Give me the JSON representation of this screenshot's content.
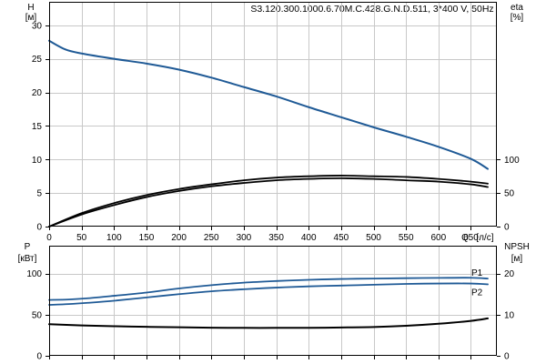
{
  "chart_data": [
    {
      "type": "line",
      "title": "S3.120.300.1000.6.70M.C.428.G.N.D.511, 3*400 V, 50Hz",
      "x_label": "Q",
      "x_unit": "[л/с]",
      "x_ticks": [
        0,
        50,
        100,
        150,
        200,
        250,
        300,
        350,
        400,
        450,
        500,
        550,
        600,
        650
      ],
      "xlim": [
        0,
        690
      ],
      "y_left": {
        "label": "H",
        "unit": "[м]",
        "ticks": [
          0,
          5,
          10,
          15,
          20,
          25,
          30
        ],
        "lim": [
          0,
          33.5
        ]
      },
      "y_right": {
        "label": "eta",
        "unit": "[%]",
        "ticks": [
          0,
          50,
          100
        ],
        "lim": [
          0,
          335
        ]
      },
      "grid": true,
      "colors": {
        "head": "#1f5a96",
        "eta": "#000000"
      },
      "series": [
        {
          "axis": "left",
          "role": "head",
          "x": [
            0,
            25,
            50,
            100,
            150,
            200,
            250,
            300,
            350,
            400,
            450,
            500,
            550,
            600,
            650,
            676
          ],
          "y": [
            27.7,
            26.4,
            25.8,
            25.0,
            24.3,
            23.4,
            22.2,
            20.8,
            19.4,
            17.8,
            16.3,
            14.8,
            13.4,
            11.9,
            10.1,
            8.6
          ]
        },
        {
          "axis": "right",
          "role": "eta",
          "x": [
            0,
            50,
            100,
            150,
            200,
            250,
            300,
            350,
            400,
            450,
            500,
            550,
            600,
            650,
            676
          ],
          "y": [
            0,
            20,
            35,
            47,
            56,
            63,
            69,
            73,
            75,
            76,
            75,
            74,
            71,
            67,
            64
          ]
        },
        {
          "axis": "right",
          "role": "eta",
          "x": [
            0,
            50,
            100,
            150,
            200,
            250,
            300,
            350,
            400,
            450,
            500,
            550,
            600,
            650,
            676
          ],
          "y": [
            0,
            18,
            32,
            44,
            53,
            60,
            65,
            69,
            71,
            72,
            71,
            69,
            67,
            63,
            59
          ]
        }
      ]
    },
    {
      "type": "line",
      "x_ticks": [
        0,
        50,
        100,
        150,
        200,
        250,
        300,
        350,
        400,
        450,
        500,
        550,
        600,
        650
      ],
      "xlim": [
        0,
        690
      ],
      "y_left": {
        "label": "P",
        "unit": "[кВт]",
        "ticks": [
          0,
          50,
          100
        ],
        "lim": [
          0,
          134
        ]
      },
      "y_right": {
        "label": "NPSH",
        "unit": "[м]",
        "ticks": [
          0,
          10,
          20
        ],
        "lim": [
          0,
          26.8
        ]
      },
      "grid": true,
      "colors": {
        "power": "#1f5a96",
        "npsh": "#000000"
      },
      "series": [
        {
          "axis": "left",
          "role": "power",
          "name": "P1",
          "x": [
            0,
            30,
            60,
            100,
            150,
            200,
            250,
            300,
            350,
            400,
            450,
            500,
            550,
            600,
            650,
            676
          ],
          "y": [
            68,
            68.5,
            70,
            73,
            77,
            82,
            86,
            89,
            91,
            92.5,
            93.5,
            94,
            94.5,
            94.8,
            95,
            94
          ]
        },
        {
          "axis": "left",
          "role": "power",
          "name": "P2",
          "x": [
            0,
            30,
            60,
            100,
            150,
            200,
            250,
            300,
            350,
            400,
            450,
            500,
            550,
            600,
            650,
            676
          ],
          "y": [
            62,
            63,
            64.5,
            67,
            71,
            75,
            78.5,
            81,
            83,
            84.5,
            85.5,
            86.5,
            87.5,
            88,
            88,
            87
          ]
        },
        {
          "axis": "right",
          "role": "npsh",
          "x": [
            0,
            50,
            100,
            150,
            200,
            250,
            300,
            350,
            400,
            450,
            500,
            550,
            600,
            650,
            676
          ],
          "y": [
            7.7,
            7.4,
            7.2,
            7.05,
            6.95,
            6.85,
            6.8,
            6.8,
            6.8,
            6.9,
            7.0,
            7.3,
            7.8,
            8.5,
            9.1
          ]
        }
      ]
    }
  ]
}
